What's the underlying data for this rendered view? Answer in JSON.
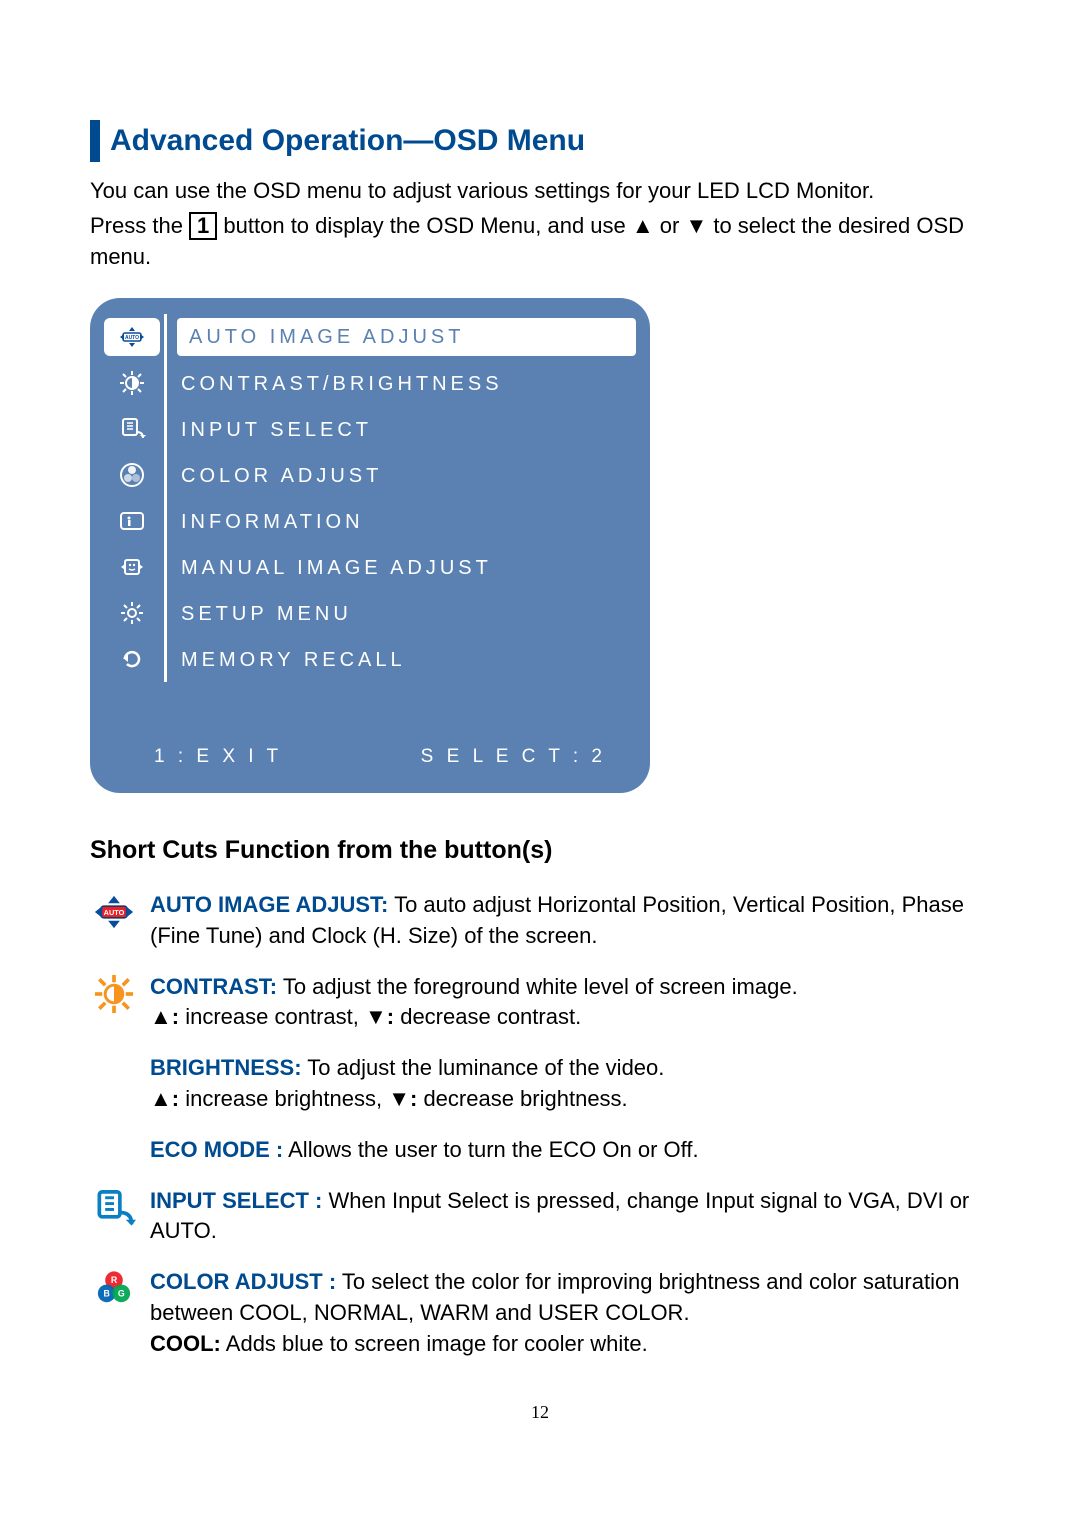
{
  "heading": "Advanced Operation—OSD Menu",
  "intro": {
    "line1": "You can use the OSD menu to adjust various settings for your LED LCD Monitor.",
    "line2a": "Press the ",
    "key": "1",
    "line2b": " button to display the OSD Menu, and use ▲ or ▼ to select the desired OSD menu."
  },
  "osd": {
    "bg_color": "#5a81b1",
    "items": [
      {
        "label": "AUTO IMAGE ADJUST",
        "icon": "auto",
        "selected": true
      },
      {
        "label": "CONTRAST/BRIGHTNESS",
        "icon": "contrast",
        "selected": false
      },
      {
        "label": "INPUT SELECT",
        "icon": "input",
        "selected": false
      },
      {
        "label": "COLOR ADJUST",
        "icon": "color",
        "selected": false
      },
      {
        "label": "INFORMATION",
        "icon": "info",
        "selected": false
      },
      {
        "label": "MANUAL IMAGE ADJUST",
        "icon": "manual",
        "selected": false
      },
      {
        "label": "SETUP MENU",
        "icon": "setup",
        "selected": false
      },
      {
        "label": "MEMORY RECALL",
        "icon": "recall",
        "selected": false
      }
    ],
    "footer_left": "1 : E X I T",
    "footer_right": "S E L E C T : 2"
  },
  "subheading": "Short Cuts Function from the button(s)",
  "shortcuts": [
    {
      "icon": "auto-color",
      "lead": "AUTO IMAGE ADJUST:",
      "body": " To auto adjust Horizontal Position, Vertical Position, Phase (Fine Tune) and Clock (H. Size) of the screen."
    },
    {
      "icon": "contrast-color",
      "lead": "CONTRAST:",
      "body": " To adjust the foreground white level of screen image.",
      "extra": "▲: increase contrast, ▼: decrease contrast."
    },
    {
      "icon": "",
      "lead": "BRIGHTNESS:",
      "body": " To adjust the luminance of the video.",
      "extra": "▲: increase brightness, ▼: decrease brightness."
    },
    {
      "icon": "",
      "lead": "ECO MODE :",
      "body": " Allows the user to turn the ECO On or Off."
    },
    {
      "icon": "input-color",
      "lead": "INPUT SELECT :",
      "body": " When Input Select is pressed, change Input signal to VGA, DVI or AUTO."
    },
    {
      "icon": "color-color",
      "lead": "COLOR ADJUST :",
      "body": " To select the color for improving brightness and color saturation between COOL, NORMAL, WARM and USER COLOR.",
      "extra2_lead": "COOL:",
      "extra2_body": " Adds blue to screen image for cooler white."
    }
  ],
  "page_number": "12"
}
